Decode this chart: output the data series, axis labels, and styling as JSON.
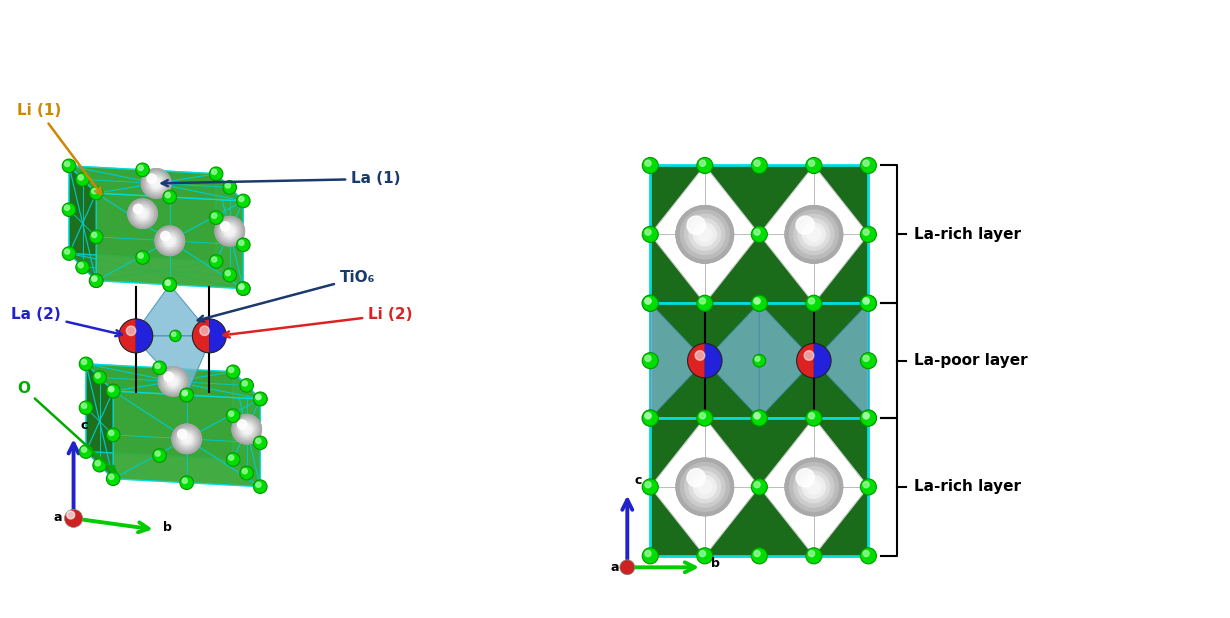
{
  "background_color": "#ffffff",
  "green_atom_color": "#00dd00",
  "green_atom_edge": "#009900",
  "dark_green_face": "#1a6b1a",
  "medium_green_face": "#2d8c2d",
  "light_green_face": "#3aaa3a",
  "cyan_edge": "#00e5e5",
  "tio6_color": "#7ab8d4",
  "la1_color": "#d4d4d4",
  "la2_red_color": "#dd2222",
  "la2_blue_color": "#2222dd",
  "li_orange_color": "#cc8800",
  "labels": {
    "Li1": "Li (1)",
    "La1": "La (1)",
    "TiO6": "TiO₆",
    "La2": "La (2)",
    "Li2": "Li (2)",
    "O": "O",
    "La_rich": "La-rich layer",
    "La_poor": "La-poor layer"
  }
}
